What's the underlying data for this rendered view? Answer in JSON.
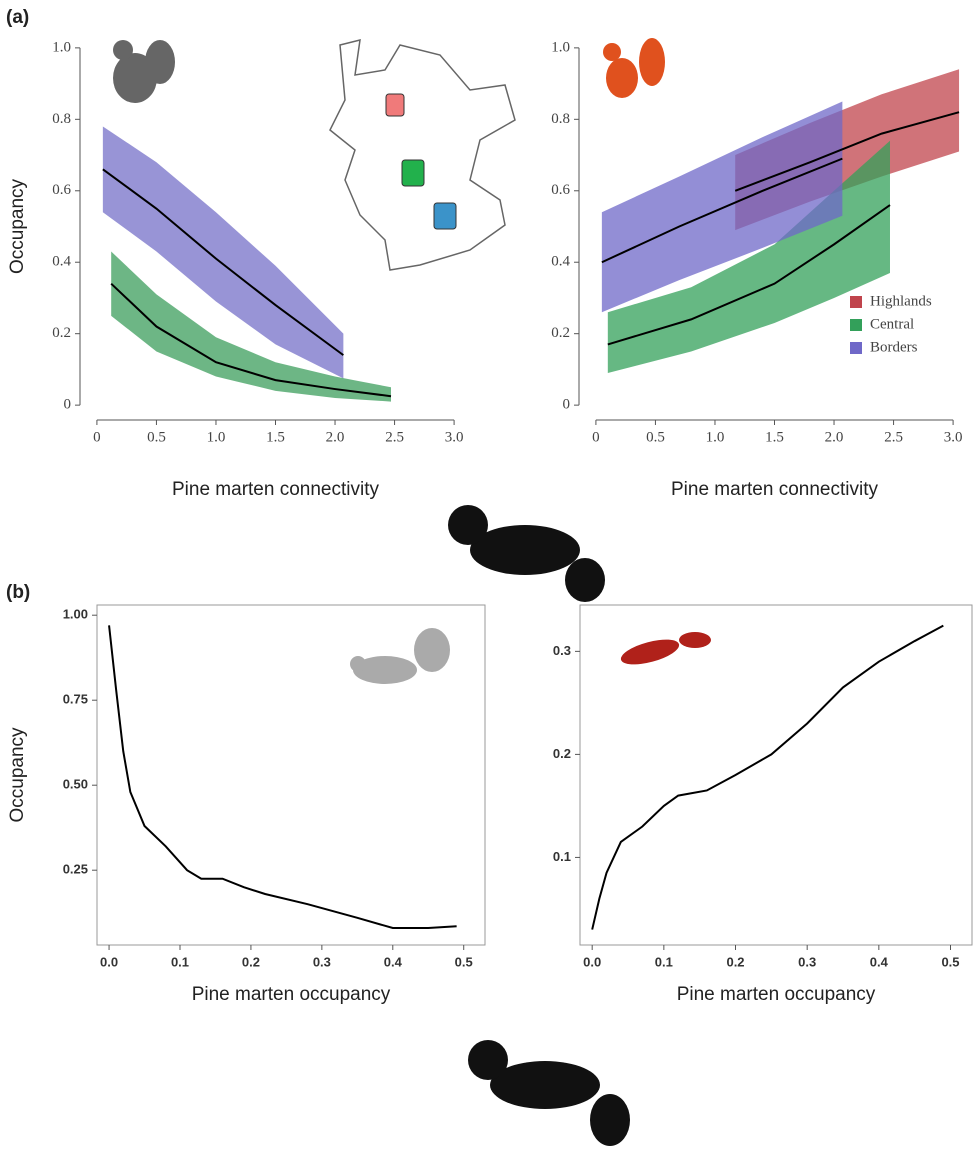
{
  "chart_data": [
    {
      "type": "band-line",
      "panel": "(a)",
      "ylabel": "Occupancy",
      "xlabel": "Pine marten connectivity",
      "frame": false,
      "xlim": [
        -0.1,
        3.1
      ],
      "ylim": [
        -0.05,
        1.05
      ],
      "xticks": [
        0,
        0.5,
        {
          "value": 1,
          "label": "1.0"
        },
        1.5,
        {
          "value": 2,
          "label": "2.0"
        },
        2.5,
        {
          "value": 3,
          "label": "3.0"
        }
      ],
      "yticks": [
        0,
        0.2,
        0.4,
        0.6,
        0.8,
        {
          "value": 1,
          "label": "1.0"
        }
      ],
      "series": [
        {
          "color": "#000000",
          "fill": "#7570c8",
          "x": [
            0.05,
            0.5,
            1.0,
            1.5,
            2.07
          ],
          "values": [
            0.66,
            0.55,
            0.41,
            0.28,
            0.14
          ],
          "lower": [
            0.54,
            0.43,
            0.29,
            0.17,
            0.075
          ],
          "upper": [
            0.78,
            0.68,
            0.54,
            0.39,
            0.2
          ]
        },
        {
          "color": "#000000",
          "fill": "#3c9e5c",
          "x": [
            0.12,
            0.5,
            1.0,
            1.5,
            2.0,
            2.47
          ],
          "values": [
            0.34,
            0.22,
            0.12,
            0.07,
            0.045,
            0.025
          ],
          "lower": [
            0.25,
            0.15,
            0.08,
            0.04,
            0.02,
            0.01
          ],
          "upper": [
            0.43,
            0.31,
            0.19,
            0.12,
            0.08,
            0.05
          ]
        }
      ]
    },
    {
      "type": "band-line",
      "xlabel": "Pine marten connectivity",
      "frame": false,
      "legend": "lower right",
      "xlim": [
        -0.1,
        3.1
      ],
      "ylim": [
        -0.05,
        1.05
      ],
      "xticks": [
        0,
        0.5,
        {
          "value": 1,
          "label": "1.0"
        },
        1.5,
        {
          "value": 2,
          "label": "2.0"
        },
        2.5,
        {
          "value": 3,
          "label": "3.0"
        }
      ],
      "yticks": [
        0,
        0.2,
        0.4,
        0.6,
        0.8,
        {
          "value": 1,
          "label": "1.0"
        }
      ],
      "series": [
        {
          "name": "Highlands",
          "color": "#000000",
          "fill": "#c0444c",
          "x": [
            1.17,
            1.8,
            2.4,
            3.05
          ],
          "values": [
            0.6,
            0.68,
            0.76,
            0.82
          ],
          "lower": [
            0.49,
            0.57,
            0.64,
            0.71
          ],
          "upper": [
            0.7,
            0.79,
            0.87,
            0.94
          ]
        },
        {
          "name": "Central",
          "color": "#000000",
          "fill": "#33a05a",
          "x": [
            0.1,
            0.8,
            1.5,
            2.0,
            2.47
          ],
          "values": [
            0.17,
            0.24,
            0.34,
            0.45,
            0.56
          ],
          "lower": [
            0.09,
            0.15,
            0.23,
            0.3,
            0.37
          ],
          "upper": [
            0.26,
            0.33,
            0.45,
            0.6,
            0.74
          ]
        },
        {
          "name": "Borders",
          "color": "#000000",
          "fill": "#6f68c8",
          "x": [
            0.05,
            0.7,
            1.4,
            2.07
          ],
          "values": [
            0.4,
            0.5,
            0.6,
            0.69
          ],
          "lower": [
            0.26,
            0.35,
            0.44,
            0.53
          ],
          "upper": [
            0.54,
            0.64,
            0.75,
            0.85
          ]
        }
      ]
    },
    {
      "type": "line",
      "panel": "(b)",
      "ylabel": "Occupancy",
      "xlabel": "Pine marten occupancy",
      "frame": true,
      "color": "#000000",
      "xlim": [
        -0.017,
        0.53
      ],
      "ylim": [
        0.03,
        1.03
      ],
      "xticks": [
        {
          "value": 0,
          "label": "0.0"
        },
        0.1,
        0.2,
        0.3,
        0.4,
        0.5
      ],
      "yticks": [
        0.25,
        {
          "value": 0.5,
          "label": "0.50"
        },
        0.75,
        {
          "value": 1,
          "label": "1.00"
        }
      ],
      "x": [
        0,
        0.01,
        0.02,
        0.03,
        0.05,
        0.08,
        0.11,
        0.13,
        0.16,
        0.19,
        0.22,
        0.28,
        0.35,
        0.4,
        0.45,
        0.49
      ],
      "values": [
        0.97,
        0.78,
        0.6,
        0.48,
        0.38,
        0.32,
        0.25,
        0.225,
        0.225,
        0.2,
        0.18,
        0.15,
        0.11,
        0.08,
        0.08,
        0.085
      ]
    },
    {
      "type": "line",
      "xlabel": "Pine marten occupancy",
      "frame": true,
      "color": "#000000",
      "xlim": [
        -0.017,
        0.53
      ],
      "ylim": [
        0.015,
        0.345
      ],
      "xticks": [
        {
          "value": 0,
          "label": "0.0"
        },
        0.1,
        0.2,
        0.3,
        0.4,
        0.5
      ],
      "yticks": [
        0.1,
        0.2,
        0.3
      ],
      "x": [
        0,
        0.01,
        0.02,
        0.04,
        0.07,
        0.1,
        0.12,
        0.16,
        0.2,
        0.25,
        0.3,
        0.35,
        0.4,
        0.45,
        0.49
      ],
      "values": [
        0.03,
        0.06,
        0.085,
        0.115,
        0.13,
        0.15,
        0.16,
        0.165,
        0.18,
        0.2,
        0.23,
        0.265,
        0.29,
        0.31,
        0.325
      ]
    }
  ]
}
